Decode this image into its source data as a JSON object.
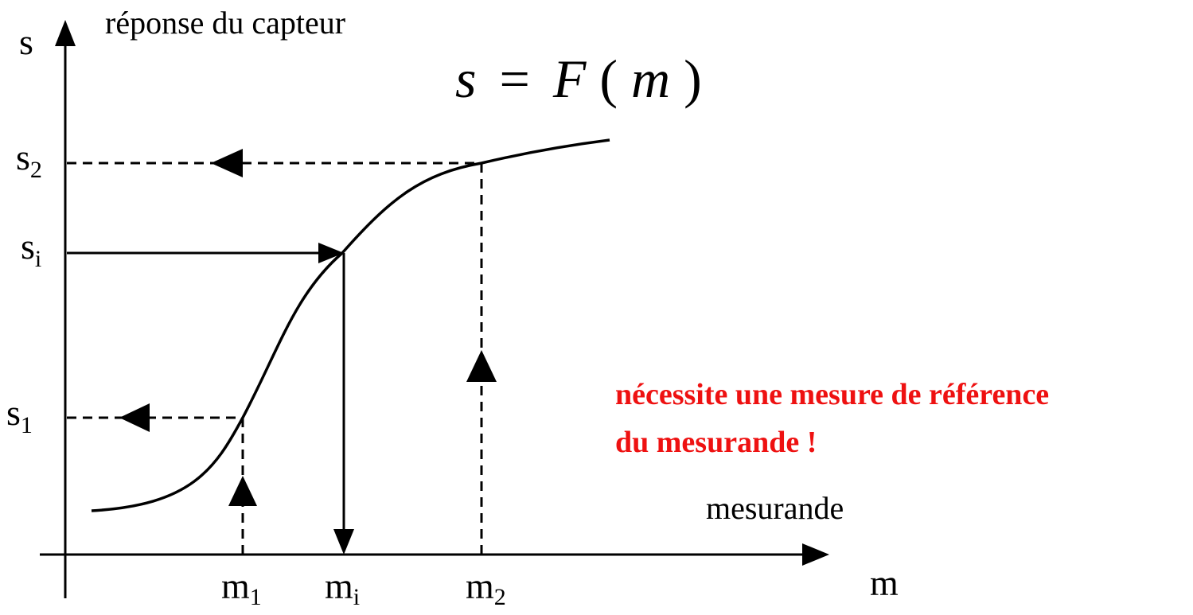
{
  "diagram": {
    "y_axis": {
      "symbol": "s",
      "caption": "réponse du capteur"
    },
    "x_axis": {
      "symbol": "m",
      "caption": "mesurande"
    },
    "equation": {
      "lhs": "s",
      "eq": "=",
      "func": "F",
      "open": "(",
      "arg": "m",
      "close": ")"
    },
    "y_ticks": [
      {
        "base": "s",
        "sub": "2"
      },
      {
        "base": "s",
        "sub": "i"
      },
      {
        "base": "s",
        "sub": "1"
      }
    ],
    "x_ticks": [
      {
        "base": "m",
        "sub": "1"
      },
      {
        "base": "m",
        "sub": "i"
      },
      {
        "base": "m",
        "sub": "2"
      }
    ],
    "note_lines": [
      "nécessite une mesure de référence",
      "du mesurande !"
    ],
    "colors": {
      "ink": "#000000",
      "note": "#ee1111",
      "background": "#ffffff"
    }
  }
}
